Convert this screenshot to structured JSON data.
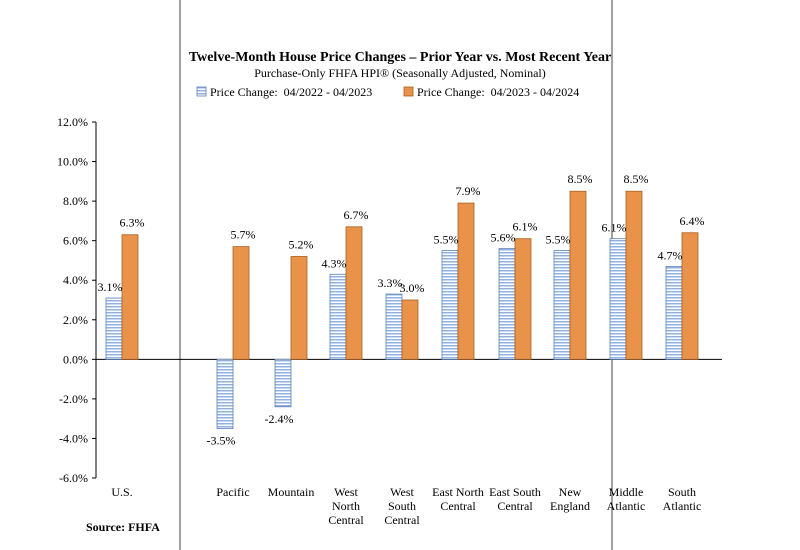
{
  "chart_data": {
    "type": "bar",
    "title": "Twelve-Month House Price Changes – Prior Year vs. Most Recent Year",
    "subtitle": "Purchase-Only FHFA HPI® (Seasonally Adjusted, Nominal)",
    "ylim": [
      -6.0,
      12.0
    ],
    "yticks": [
      -6.0,
      -4.0,
      -2.0,
      0.0,
      2.0,
      4.0,
      6.0,
      8.0,
      10.0,
      12.0
    ],
    "ytick_labels": [
      "-6.0%",
      "-4.0%",
      "-2.0%",
      "0.0%",
      "2.0%",
      "4.0%",
      "6.0%",
      "8.0%",
      "10.0%",
      "12.0%"
    ],
    "categories": [
      [
        "U.S."
      ],
      [
        "Pacific"
      ],
      [
        "Mountain"
      ],
      [
        "West",
        "North",
        "Central"
      ],
      [
        "West",
        "South",
        "Central"
      ],
      [
        "East North",
        "Central"
      ],
      [
        "East South",
        "Central"
      ],
      [
        "New",
        "England"
      ],
      [
        "Middle",
        "Atlantic"
      ],
      [
        "South",
        "Atlantic"
      ]
    ],
    "series": [
      {
        "name": "Price Change:  04/2022 - 04/2023",
        "color": "#8fb0e0",
        "pattern": "horizontal-stripes",
        "values": [
          3.1,
          -3.5,
          -2.4,
          4.3,
          3.3,
          5.5,
          5.6,
          5.5,
          6.1,
          4.7
        ],
        "labels": [
          "3.1%",
          "-3.5%",
          "-2.4%",
          "4.3%",
          "3.3%",
          "5.5%",
          "5.6%",
          "5.5%",
          "6.1%",
          "4.7%"
        ]
      },
      {
        "name": "Price Change:  04/2023 - 04/2024",
        "color": "#e8924a",
        "pattern": "solid",
        "values": [
          6.3,
          5.7,
          5.2,
          6.7,
          3.0,
          7.9,
          6.1,
          8.5,
          8.5,
          6.4
        ],
        "labels": [
          "6.3%",
          "5.7%",
          "5.2%",
          "6.7%",
          "3.0%",
          "7.9%",
          "6.1%",
          "8.5%",
          "8.5%",
          "6.4%"
        ]
      }
    ],
    "legend": "top-center",
    "grid": false,
    "source": "Source: FHFA"
  }
}
